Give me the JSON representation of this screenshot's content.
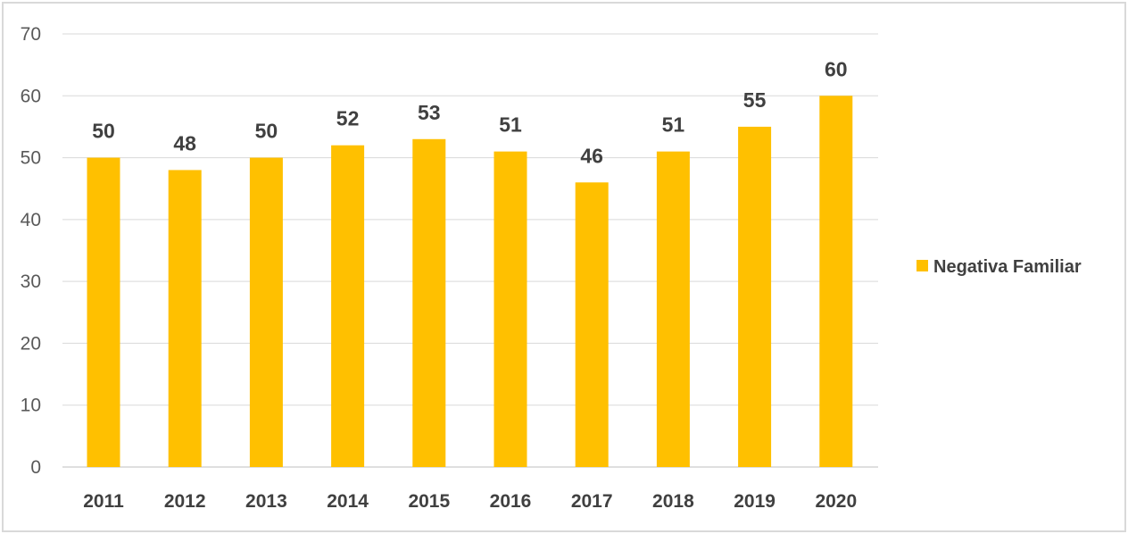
{
  "chart_data": {
    "type": "bar",
    "categories": [
      "2011",
      "2012",
      "2013",
      "2014",
      "2015",
      "2016",
      "2017",
      "2018",
      "2019",
      "2020"
    ],
    "series": [
      {
        "name": "Negativa Familiar",
        "values": [
          50,
          48,
          50,
          52,
          53,
          51,
          46,
          51,
          55,
          60
        ],
        "color": "#FFC000"
      }
    ],
    "title": "",
    "xlabel": "",
    "ylabel": "",
    "ylim": [
      0,
      70
    ],
    "yticks": [
      "0",
      "10",
      "20",
      "30",
      "40",
      "50",
      "60",
      "70"
    ],
    "grid": true,
    "legend_position": "right",
    "data_labels": true
  }
}
